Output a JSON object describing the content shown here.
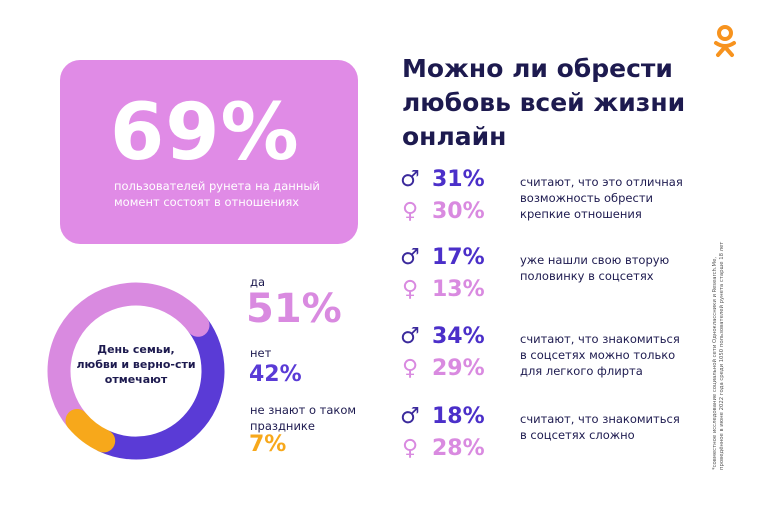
{
  "logo": {
    "name": "odnoklassniki-logo",
    "color": "#f7931e"
  },
  "card": {
    "value": "69%",
    "text": "пользователей рунета на данный момент состоят в отношениях",
    "color": "#e08be6"
  },
  "title": [
    "Можно ли обрести",
    "любовь всей жизни",
    "онлайн"
  ],
  "rows": [
    {
      "male": "31%",
      "female": "30%",
      "text": "считают, что это отличная возможность обрести крепкие отношения"
    },
    {
      "male": "17%",
      "female": "13%",
      "text": "уже нашли свою вторую половинку в соцсетях"
    },
    {
      "male": "34%",
      "female": "29%",
      "text": "считают, что знакомиться в соцсетях можно только для легкого флирта"
    },
    {
      "male": "18%",
      "female": "28%",
      "text": "считают, что знакомиться в соцсетях сложно"
    }
  ],
  "icons": {
    "male": "male-symbol-icon",
    "female": "female-symbol-icon"
  },
  "chart_data": {
    "type": "pie",
    "title": "День семьи, любви и верно-сти отмечают",
    "slices": [
      {
        "label": "да",
        "value": 51,
        "display": "51%",
        "color": "#d98ae0"
      },
      {
        "label": "нет",
        "value": 42,
        "display": "42%",
        "color": "#5a3bd6"
      },
      {
        "label": "не знают о таком празднике",
        "value": 7,
        "display": "7%",
        "color": "#f7a81b"
      }
    ]
  },
  "footnote": "*совместное исследование социальной сети Одноклассники и Research.Me, проведённое в июне 2022 года среди 1050 пользователей рунета старше 18 лет"
}
